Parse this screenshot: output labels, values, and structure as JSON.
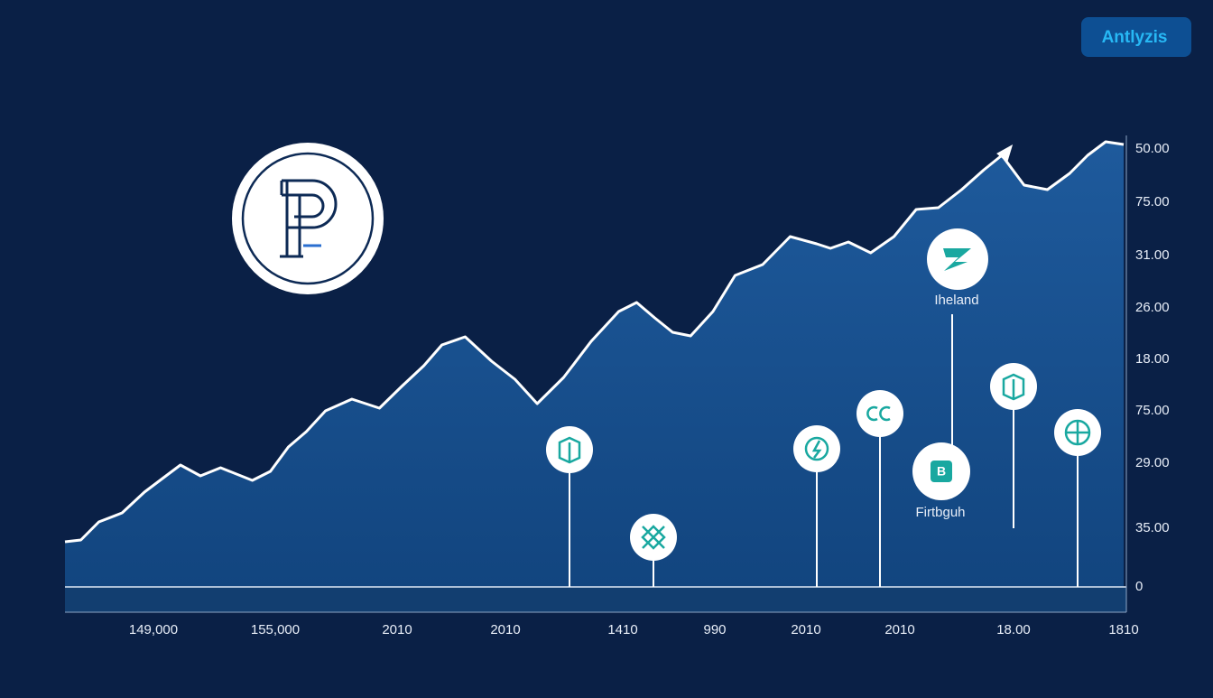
{
  "button": "Antlyzis",
  "annotations": [
    "Iheland",
    "Firtbguh"
  ],
  "chart_data": {
    "type": "area",
    "color": "#ffffff",
    "x": [
      0,
      1.5,
      3.2,
      5.4,
      7.5,
      9.2,
      10.9,
      12.8,
      14.7,
      17.7,
      19.4,
      21.1,
      22.8,
      24.6,
      27.1,
      29.7,
      31.8,
      33.9,
      35.6,
      37.8,
      40.3,
      42.5,
      44.6,
      47.1,
      49.7,
      52.3,
      54.0,
      55.7,
      57.4,
      59.1,
      61.2,
      63.3,
      65.9,
      68.5,
      71.0,
      72.3,
      74.0,
      76.1,
      78.3,
      80.4,
      82.5,
      84.7,
      86.8,
      88.5,
      90.6,
      92.8,
      94.9,
      96.6,
      98.3,
      100
    ],
    "values": [
      10,
      10.4,
      14.4,
      16.4,
      21,
      24,
      27,
      24.6,
      26.4,
      23.6,
      25.6,
      31,
      34.4,
      39,
      41.6,
      39.6,
      44.4,
      49,
      53.6,
      55.4,
      50,
      46,
      40.6,
      46.4,
      54.4,
      61,
      63,
      59.6,
      56.4,
      55.6,
      61,
      69,
      71.4,
      77.6,
      76,
      75,
      76.4,
      74,
      77.6,
      83.6,
      84,
      88,
      92.4,
      95.6,
      89,
      88,
      91.6,
      95.6,
      98.6,
      98
    ],
    "xlim": [
      0,
      100
    ],
    "ylim": [
      0,
      100
    ],
    "y_labels": [
      "50.00",
      "75.00",
      "31.00",
      "26.00",
      "18.00",
      "75.00",
      "29.00",
      "35.00",
      "0"
    ],
    "x_labels": [
      "149,000",
      "155,000",
      "2010",
      "2010",
      "1410",
      "990",
      "2010",
      "2010",
      "18.00",
      "1810"
    ]
  }
}
